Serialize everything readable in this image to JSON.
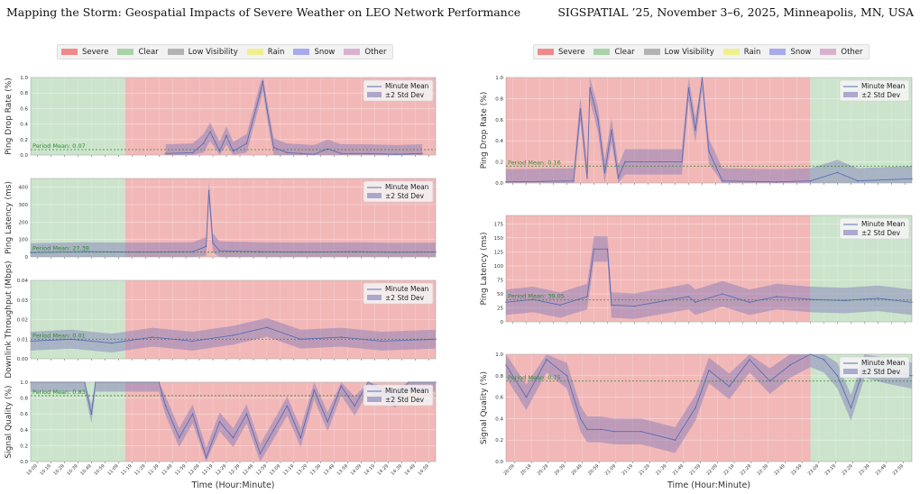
{
  "header": {
    "left": "Mapping the Storm: Geospatial Impacts of Severe Weather on LEO Network Performance",
    "right": "SIGSPATIAL ’25, November 3–6, 2025, Minneapolis, MN, USA"
  },
  "weather_legend": [
    {
      "label": "Severe",
      "color": "#f08a8a"
    },
    {
      "label": "Clear",
      "color": "#a8d3a8"
    },
    {
      "label": "Low Visibility",
      "color": "#b3b3b3"
    },
    {
      "label": "Rain",
      "color": "#f0ef8f"
    },
    {
      "label": "Snow",
      "color": "#a9a9f0"
    },
    {
      "label": "Other",
      "color": "#d9b1cf"
    }
  ],
  "colors": {
    "severe": "#ec9a9a",
    "clear": "#b7d8b7",
    "line": "#5a6db3",
    "band": "#7d78b8",
    "mean": "#2e8b2e"
  },
  "chart_data": [
    {
      "type": "line",
      "id": "L1",
      "ylabel": "Ping Drop Rate (%)",
      "ylim": [
        0,
        1.0
      ],
      "yticks": [
        0.0,
        0.2,
        0.4,
        0.6,
        0.8,
        1.0
      ],
      "period_mean": 0.07,
      "period_mean_label": "Period Mean: 0.07",
      "weather": [
        {
          "start": 0,
          "end": 70,
          "type": "clear"
        },
        {
          "start": 70,
          "end": 300,
          "type": "severe"
        }
      ],
      "xticks": [],
      "xlabel": "",
      "series": [
        {
          "name": "Minute Mean",
          "points": [
            [
              100,
              0.02
            ],
            [
              120,
              0.03
            ],
            [
              128,
              0.15
            ],
            [
              133,
              0.3
            ],
            [
              140,
              0.05
            ],
            [
              145,
              0.25
            ],
            [
              150,
              0.05
            ],
            [
              160,
              0.15
            ],
            [
              170,
              0.8
            ],
            [
              172,
              0.95
            ],
            [
              175,
              0.6
            ],
            [
              180,
              0.1
            ],
            [
              190,
              0.03
            ],
            [
              200,
              0.02
            ],
            [
              210,
              0.01
            ],
            [
              220,
              0.08
            ],
            [
              230,
              0.02
            ],
            [
              250,
              0.02
            ],
            [
              270,
              0.01
            ],
            [
              290,
              0.02
            ]
          ]
        }
      ],
      "legend": [
        "Minute Mean",
        "±2 Std Dev"
      ]
    },
    {
      "type": "line",
      "id": "L2",
      "ylabel": "Ping Latency (ms)",
      "ylim": [
        0,
        450
      ],
      "yticks": [
        0,
        100,
        200,
        300,
        400
      ],
      "period_mean": 27.38,
      "period_mean_label": "Period Mean: 27.38",
      "weather": [
        {
          "start": 0,
          "end": 70,
          "type": "clear"
        },
        {
          "start": 70,
          "end": 300,
          "type": "severe"
        }
      ],
      "xticks": [],
      "xlabel": "",
      "series": [
        {
          "name": "Minute Mean",
          "points": [
            [
              0,
              25
            ],
            [
              40,
              30
            ],
            [
              80,
              28
            ],
            [
              120,
              30
            ],
            [
              130,
              60
            ],
            [
              132,
              380
            ],
            [
              135,
              80
            ],
            [
              140,
              35
            ],
            [
              170,
              30
            ],
            [
              200,
              28
            ],
            [
              240,
              30
            ],
            [
              270,
              27
            ],
            [
              300,
              28
            ]
          ]
        }
      ],
      "legend": [
        "Minute Mean",
        "±2 Std Dev"
      ]
    },
    {
      "type": "line",
      "id": "L3",
      "ylabel": "Downlink Throughput (Mbps)",
      "ylim": [
        0,
        0.04
      ],
      "yticks": [
        0.0,
        0.01,
        0.02,
        0.03,
        0.04
      ],
      "period_mean": 0.01,
      "period_mean_label": "Period Mean: 0.01",
      "weather": [
        {
          "start": 0,
          "end": 70,
          "type": "clear"
        },
        {
          "start": 70,
          "end": 300,
          "type": "severe"
        }
      ],
      "xticks": [],
      "xlabel": "",
      "series": [
        {
          "name": "Minute Mean",
          "points": [
            [
              0,
              0.009
            ],
            [
              30,
              0.01
            ],
            [
              60,
              0.008
            ],
            [
              90,
              0.011
            ],
            [
              120,
              0.009
            ],
            [
              150,
              0.012
            ],
            [
              175,
              0.016
            ],
            [
              200,
              0.01
            ],
            [
              230,
              0.011
            ],
            [
              260,
              0.009
            ],
            [
              300,
              0.01
            ]
          ]
        }
      ],
      "legend": [
        "Minute Mean",
        "±2 Std Dev"
      ]
    },
    {
      "type": "line",
      "id": "L4",
      "ylabel": "Signal Quality (%)",
      "ylim": [
        0,
        1.0
      ],
      "yticks": [
        0.0,
        0.2,
        0.4,
        0.6,
        0.8,
        1.0
      ],
      "period_mean": 0.83,
      "period_mean_label": "Period Mean: 0.83",
      "weather": [
        {
          "start": 0,
          "end": 70,
          "type": "clear"
        },
        {
          "start": 70,
          "end": 300,
          "type": "severe"
        }
      ],
      "xticks": [
        "10:09",
        "10:19",
        "10:29",
        "10:39",
        "10:49",
        "10:59",
        "11:09",
        "11:19",
        "11:29",
        "11:39",
        "11:49",
        "11:59",
        "12:09",
        "12:19",
        "12:29",
        "12:39",
        "12:49",
        "12:59",
        "13:09",
        "13:19",
        "13:29",
        "13:39",
        "13:49",
        "13:59",
        "14:09",
        "14:19",
        "14:29",
        "14:39",
        "14:49",
        "14:59"
      ],
      "xlabel": "Time (Hour:Minute)",
      "series": [
        {
          "name": "Minute Mean",
          "points": [
            [
              0,
              1.0
            ],
            [
              40,
              1.0
            ],
            [
              45,
              0.6
            ],
            [
              48,
              1.0
            ],
            [
              95,
              1.0
            ],
            [
              100,
              0.7
            ],
            [
              110,
              0.3
            ],
            [
              120,
              0.6
            ],
            [
              130,
              0.05
            ],
            [
              140,
              0.5
            ],
            [
              150,
              0.3
            ],
            [
              160,
              0.6
            ],
            [
              170,
              0.1
            ],
            [
              180,
              0.4
            ],
            [
              190,
              0.7
            ],
            [
              200,
              0.3
            ],
            [
              210,
              0.9
            ],
            [
              220,
              0.5
            ],
            [
              230,
              0.95
            ],
            [
              240,
              0.7
            ],
            [
              250,
              1.0
            ],
            [
              270,
              0.8
            ],
            [
              280,
              1.0
            ],
            [
              300,
              1.0
            ]
          ]
        }
      ],
      "legend": [
        "Minute Mean",
        "±2 Std Dev"
      ]
    },
    {
      "type": "line",
      "id": "R1",
      "ylabel": "Ping Drop Rate (%)",
      "ylim": [
        0,
        1.0
      ],
      "yticks": [
        0.0,
        0.2,
        0.4,
        0.6,
        0.8,
        1.0
      ],
      "period_mean": 0.16,
      "period_mean_label": "Period Mean: 0.16",
      "weather": [
        {
          "start": 0,
          "end": 225,
          "type": "severe"
        },
        {
          "start": 225,
          "end": 300,
          "type": "clear"
        }
      ],
      "xticks": [],
      "xlabel": "",
      "series": [
        {
          "name": "Minute Mean",
          "points": [
            [
              0,
              0.01
            ],
            [
              50,
              0.02
            ],
            [
              55,
              0.7
            ],
            [
              60,
              0.05
            ],
            [
              62,
              0.9
            ],
            [
              68,
              0.6
            ],
            [
              73,
              0.1
            ],
            [
              78,
              0.5
            ],
            [
              83,
              0.05
            ],
            [
              88,
              0.2
            ],
            [
              100,
              0.2
            ],
            [
              130,
              0.2
            ],
            [
              135,
              0.9
            ],
            [
              140,
              0.5
            ],
            [
              145,
              1.0
            ],
            [
              150,
              0.3
            ],
            [
              160,
              0.02
            ],
            [
              200,
              0.01
            ],
            [
              225,
              0.02
            ],
            [
              245,
              0.1
            ],
            [
              260,
              0.02
            ],
            [
              300,
              0.04
            ]
          ]
        }
      ],
      "legend": [
        "Minute Mean",
        "±2 Std Dev"
      ]
    },
    {
      "type": "line",
      "id": "R2",
      "ylabel": "Ping Latency (ms)",
      "ylim": [
        0,
        190
      ],
      "yticks": [
        0,
        25,
        50,
        75,
        100,
        125,
        150,
        175
      ],
      "period_mean": 39.05,
      "period_mean_label": "Period Mean: 39.05",
      "weather": [
        {
          "start": 0,
          "end": 225,
          "type": "severe"
        },
        {
          "start": 225,
          "end": 300,
          "type": "clear"
        }
      ],
      "xticks": [],
      "xlabel": "",
      "series": [
        {
          "name": "Minute Mean",
          "points": [
            [
              0,
              35
            ],
            [
              20,
              40
            ],
            [
              40,
              30
            ],
            [
              60,
              45
            ],
            [
              65,
              130
            ],
            [
              75,
              130
            ],
            [
              78,
              30
            ],
            [
              95,
              28
            ],
            [
              135,
              45
            ],
            [
              140,
              35
            ],
            [
              160,
              50
            ],
            [
              180,
              35
            ],
            [
              200,
              45
            ],
            [
              225,
              40
            ],
            [
              250,
              38
            ],
            [
              275,
              42
            ],
            [
              300,
              35
            ]
          ]
        }
      ],
      "legend": [
        "Minute Mean",
        "±2 Std Dev"
      ]
    },
    {
      "type": "line",
      "id": "R3",
      "ylabel": "Signal Quality (%)",
      "ylim": [
        0,
        1.0
      ],
      "yticks": [
        0.0,
        0.2,
        0.4,
        0.6,
        0.8,
        1.0
      ],
      "period_mean": 0.75,
      "period_mean_label": "Period Mean: 0.75",
      "weather": [
        {
          "start": 0,
          "end": 225,
          "type": "severe"
        },
        {
          "start": 225,
          "end": 300,
          "type": "clear"
        }
      ],
      "xticks": [
        "20:09",
        "20:19",
        "20:29",
        "20:39",
        "20:49",
        "20:59",
        "21:09",
        "21:19",
        "21:29",
        "21:39",
        "21:49",
        "21:59",
        "22:09",
        "22:19",
        "22:29",
        "22:39",
        "22:49",
        "22:59",
        "23:09",
        "23:19",
        "23:29",
        "23:39",
        "23:49",
        "23:59"
      ],
      "xlabel": "Time (Hour:Minute)",
      "series": [
        {
          "name": "Minute Mean",
          "points": [
            [
              0,
              0.9
            ],
            [
              15,
              0.6
            ],
            [
              30,
              0.95
            ],
            [
              45,
              0.8
            ],
            [
              55,
              0.4
            ],
            [
              60,
              0.3
            ],
            [
              70,
              0.3
            ],
            [
              80,
              0.28
            ],
            [
              100,
              0.28
            ],
            [
              125,
              0.2
            ],
            [
              140,
              0.5
            ],
            [
              150,
              0.85
            ],
            [
              165,
              0.7
            ],
            [
              180,
              0.95
            ],
            [
              195,
              0.75
            ],
            [
              210,
              0.9
            ],
            [
              225,
              1.0
            ],
            [
              235,
              0.95
            ],
            [
              245,
              0.8
            ],
            [
              255,
              0.5
            ],
            [
              265,
              0.9
            ],
            [
              280,
              0.85
            ],
            [
              300,
              0.8
            ]
          ]
        }
      ],
      "legend": [
        "Minute Mean",
        "±2 Std Dev"
      ]
    }
  ]
}
